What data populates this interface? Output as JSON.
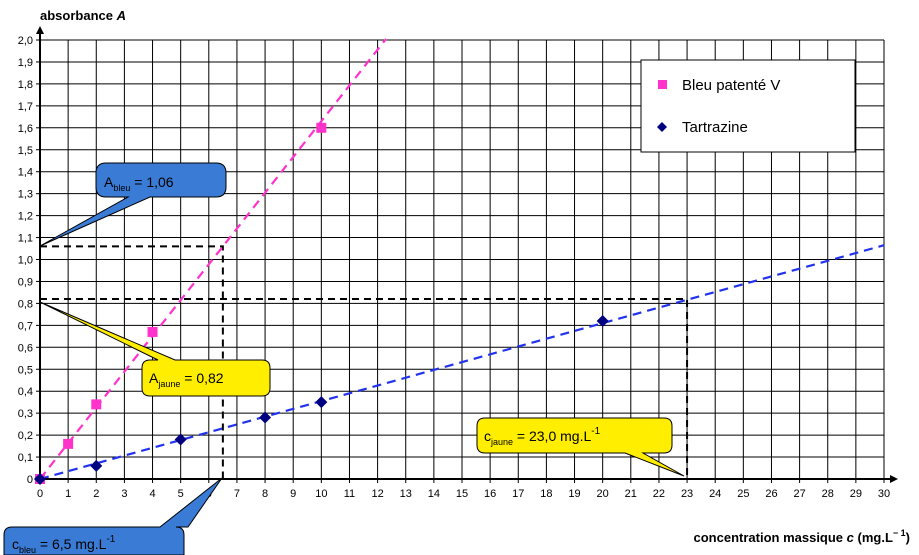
{
  "chart_data": {
    "type": "scatter",
    "x_axis": {
      "label_prefix": "concentration massique ",
      "label_var": "c",
      "label_unit": " (mg.L",
      "label_exp": "− 1",
      "label_close": ")",
      "min": 0,
      "max": 30,
      "step": 1
    },
    "y_axis": {
      "label_prefix": "absorbance ",
      "label_var": "A",
      "min": 0,
      "max": 2.0,
      "step": 0.1,
      "decimal_separator": ","
    },
    "grid": true,
    "series": [
      {
        "name": "Bleu patenté V",
        "marker": "square",
        "color": "#ff33cc",
        "x": [
          0,
          1,
          2,
          4,
          10
        ],
        "y": [
          0,
          0.16,
          0.34,
          0.67,
          1.6
        ],
        "fit_line": {
          "x_start": 0,
          "x_end": 12.3,
          "slope": 0.163
        }
      },
      {
        "name": "Tartrazine",
        "marker": "diamond",
        "color": "#000080",
        "x": [
          0,
          2,
          5,
          8,
          10,
          20
        ],
        "y": [
          0,
          0.06,
          0.18,
          0.28,
          0.35,
          0.72
        ],
        "fit_line": {
          "x_start": 0,
          "x_end": 30,
          "slope": 0.0355
        }
      }
    ],
    "guides": [
      {
        "x": 6.5,
        "y": 1.06
      },
      {
        "x": 23.0,
        "y": 0.82
      }
    ],
    "legend": {
      "placement": "top-right"
    },
    "annotations": [
      {
        "id": "a_bleu",
        "main": "A",
        "sub": "bleu",
        "value": " = 1,06",
        "color": "#3a7bd5"
      },
      {
        "id": "a_jaune",
        "main": "A",
        "sub": "jaune",
        "value": " = 0,82",
        "color": "#ffee00"
      },
      {
        "id": "c_jaune",
        "main": "c",
        "sub": "jaune",
        "value": " = 23,0 mg.L",
        "sup": "-1",
        "color": "#ffee00"
      },
      {
        "id": "c_bleu",
        "main": "c",
        "sub": "bleu",
        "value": " = 6,5 mg.L",
        "sup": "-1",
        "color": "#3a7bd5"
      }
    ]
  }
}
